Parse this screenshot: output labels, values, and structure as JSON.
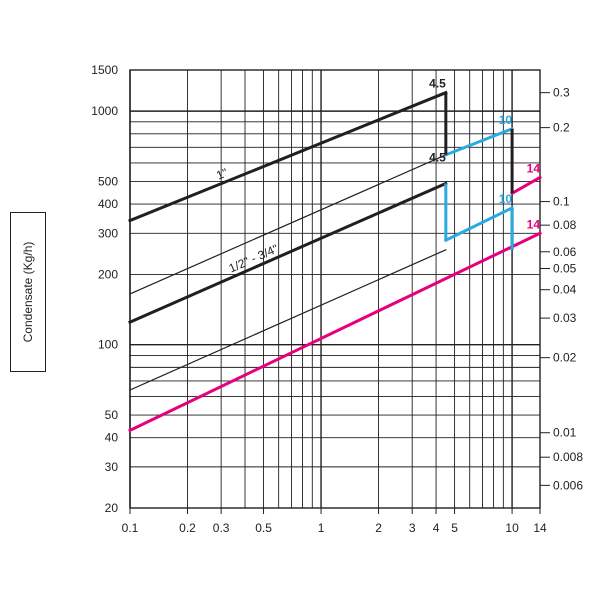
{
  "chart_data": {
    "type": "line",
    "ylabel": "Condensate (Kg/h)",
    "x_scale": "log",
    "y_scale": "log",
    "xlim": [
      0.1,
      14
    ],
    "ylim": [
      20,
      1500
    ],
    "x_ticks": [
      {
        "value": 0.1,
        "label": "0.1"
      },
      {
        "value": 0.2,
        "label": "0.2"
      },
      {
        "value": 0.3,
        "label": "0.3"
      },
      {
        "value": 0.5,
        "label": "0.5"
      },
      {
        "value": 1,
        "label": "1"
      },
      {
        "value": 2,
        "label": "2"
      },
      {
        "value": 3,
        "label": "3"
      },
      {
        "value": 4,
        "label": "4"
      },
      {
        "value": 5,
        "label": "5"
      },
      {
        "value": 10,
        "label": "10"
      },
      {
        "value": 14,
        "label": "14"
      }
    ],
    "y_ticks": [
      {
        "value": 20,
        "label": "20"
      },
      {
        "value": 30,
        "label": "30"
      },
      {
        "value": 40,
        "label": "40"
      },
      {
        "value": 50,
        "label": "50"
      },
      {
        "value": 100,
        "label": "100"
      },
      {
        "value": 200,
        "label": "200"
      },
      {
        "value": 300,
        "label": "300"
      },
      {
        "value": 400,
        "label": "400"
      },
      {
        "value": 500,
        "label": "500"
      },
      {
        "value": 1000,
        "label": "1000"
      },
      {
        "value": 1500,
        "label": "1500"
      }
    ],
    "y2_ticks": [
      {
        "primary": 1200,
        "label": "0.3"
      },
      {
        "primary": 850,
        "label": "0.2"
      },
      {
        "primary": 410,
        "label": "0.1"
      },
      {
        "primary": 325,
        "label": "0.08"
      },
      {
        "primary": 250,
        "label": "0.06"
      },
      {
        "primary": 212,
        "label": "0.05"
      },
      {
        "primary": 172,
        "label": "0.04"
      },
      {
        "primary": 130,
        "label": "0.03"
      },
      {
        "primary": 88,
        "label": "0.02"
      },
      {
        "primary": 42,
        "label": "0.01"
      },
      {
        "primary": 33,
        "label": "0.008"
      },
      {
        "primary": 25,
        "label": "0.006"
      }
    ],
    "grid": true,
    "series": [
      {
        "name": "1\"",
        "color": "#231f20",
        "bold": true,
        "points": [
          [
            0.1,
            340
          ],
          [
            4.5,
            1200
          ]
        ]
      },
      {
        "name": "1/2\" - 3/4\"",
        "color": "#231f20",
        "bold": true,
        "points": [
          [
            0.1,
            125
          ],
          [
            4.5,
            490
          ]
        ]
      },
      {
        "color": "#231f20",
        "bold": false,
        "points": [
          [
            0.1,
            165
          ],
          [
            4.5,
            650
          ]
        ]
      },
      {
        "color": "#231f20",
        "bold": false,
        "points": [
          [
            0.1,
            64
          ],
          [
            4.5,
            255
          ]
        ]
      },
      {
        "color": "#29abe2",
        "bold": true,
        "points": [
          [
            4.5,
            650
          ],
          [
            10,
            840
          ]
        ]
      },
      {
        "color": "#29abe2",
        "bold": true,
        "points": [
          [
            4.5,
            280
          ],
          [
            10,
            385
          ]
        ]
      },
      {
        "color": "#e6007e",
        "bold": true,
        "points": [
          [
            10,
            445
          ],
          [
            14,
            520
          ]
        ]
      },
      {
        "color": "#e6007e",
        "bold": true,
        "points": [
          [
            0.1,
            43
          ],
          [
            14,
            300
          ]
        ]
      }
    ],
    "drops": [
      {
        "color": "#231f20",
        "x": 4.5,
        "y_from": 1200,
        "y_to": 650
      },
      {
        "color": "#231f20",
        "x": 10,
        "y_from": 840,
        "y_to": 445
      },
      {
        "color": "#231f20",
        "x": 10,
        "y_from": 385,
        "y_to": 255
      },
      {
        "color": "#29abe2",
        "x": 4.5,
        "y_from": 490,
        "y_to": 280
      },
      {
        "color": "#29abe2",
        "x": 10,
        "y_from": 385,
        "y_to": 255
      }
    ],
    "annotations": [
      {
        "text": "4.5",
        "x": 4.5,
        "y": 1200,
        "color": "#231f20"
      },
      {
        "text": "4.5",
        "x": 4.5,
        "y": 580,
        "color": "#231f20"
      },
      {
        "text": "10",
        "x": 10,
        "y": 840,
        "color": "#29abe2"
      },
      {
        "text": "10",
        "x": 10,
        "y": 385,
        "color": "#29abe2"
      },
      {
        "text": "14",
        "x": 14,
        "y": 520,
        "color": "#e6007e"
      },
      {
        "text": "14",
        "x": 14,
        "y": 300,
        "color": "#e6007e"
      }
    ]
  }
}
